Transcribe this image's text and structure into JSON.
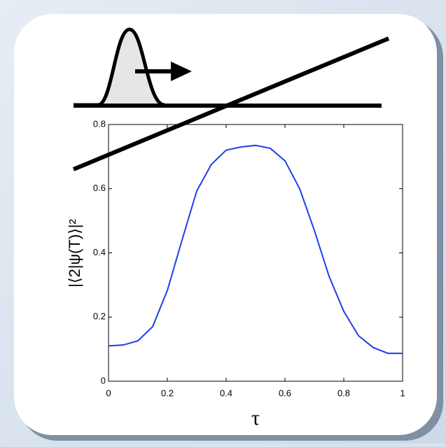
{
  "chart_data": {
    "type": "line",
    "x": [
      0,
      0.05,
      0.1,
      0.15,
      0.2,
      0.25,
      0.3,
      0.35,
      0.4,
      0.45,
      0.5,
      0.55,
      0.6,
      0.65,
      0.7,
      0.75,
      0.8,
      0.85,
      0.9,
      0.95,
      1
    ],
    "series": [
      {
        "color": "#1f3ee8",
        "values": [
          0.11,
          0.113,
          0.126,
          0.17,
          0.283,
          0.44,
          0.593,
          0.676,
          0.72,
          0.73,
          0.735,
          0.726,
          0.687,
          0.6,
          0.47,
          0.327,
          0.218,
          0.142,
          0.105,
          0.087,
          0.087
        ]
      }
    ],
    "xlabel": "τ",
    "ylabel": "|⟨2|ψ(T)⟩|²",
    "xlim": [
      0,
      1
    ],
    "xticks": [
      0,
      0.2,
      0.4,
      0.6,
      0.8,
      1
    ],
    "ylim": [
      0,
      0.8
    ],
    "yticks": [
      0,
      0.2,
      0.4,
      0.6,
      0.8
    ]
  }
}
